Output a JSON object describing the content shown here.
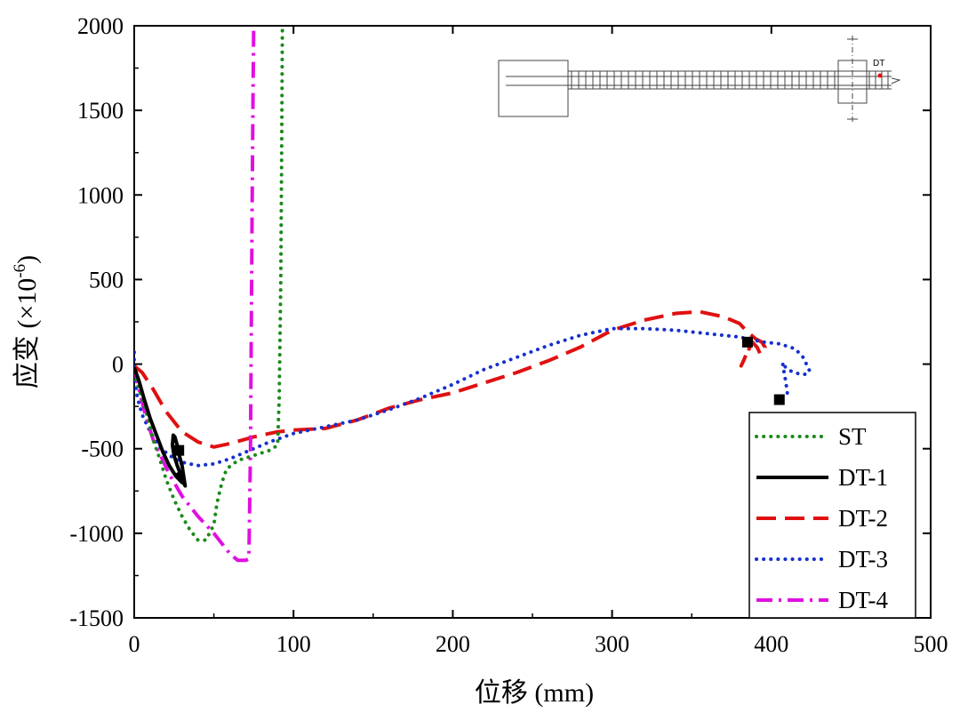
{
  "chart_data": {
    "type": "line",
    "xlabel": "位移 (mm)",
    "ylabel_main": "应变 (×10",
    "ylabel_exp": "-6",
    "ylabel_close": ")",
    "xlim": [
      0,
      500
    ],
    "ylim": [
      -1500,
      2000
    ],
    "xticks": [
      0,
      100,
      200,
      300,
      400,
      500
    ],
    "yticks": [
      -1500,
      -1000,
      -500,
      0,
      500,
      1000,
      1500,
      2000
    ],
    "xtick_labels": [
      "0",
      "100",
      "200",
      "300",
      "400",
      "500"
    ],
    "ytick_labels": [
      "-1500",
      "-1000",
      "-500",
      "0",
      "500",
      "1000",
      "1500",
      "2000"
    ],
    "grid": false,
    "legend_position": "bottom-right",
    "series": [
      {
        "name": "ST",
        "color": "#1a8a1a",
        "style": "dotted",
        "points": [
          [
            0,
            -50
          ],
          [
            3,
            -150
          ],
          [
            8,
            -300
          ],
          [
            12,
            -450
          ],
          [
            16,
            -560
          ],
          [
            20,
            -680
          ],
          [
            25,
            -800
          ],
          [
            30,
            -900
          ],
          [
            35,
            -980
          ],
          [
            40,
            -1040
          ],
          [
            45,
            -1040
          ],
          [
            50,
            -950
          ],
          [
            52,
            -820
          ],
          [
            55,
            -700
          ],
          [
            58,
            -620
          ],
          [
            65,
            -570
          ],
          [
            75,
            -540
          ],
          [
            85,
            -510
          ],
          [
            90,
            -480
          ],
          [
            91,
            -200
          ],
          [
            92,
            500
          ],
          [
            92.5,
            1200
          ],
          [
            93,
            2000
          ]
        ]
      },
      {
        "name": "DT-1",
        "color": "#000000",
        "style": "solid",
        "points": [
          [
            0,
            -20
          ],
          [
            3,
            -100
          ],
          [
            6,
            -200
          ],
          [
            10,
            -320
          ],
          [
            14,
            -420
          ],
          [
            18,
            -520
          ],
          [
            22,
            -600
          ],
          [
            26,
            -660
          ],
          [
            30,
            -700
          ],
          [
            31,
            -690
          ],
          [
            29,
            -650
          ],
          [
            27,
            -600
          ],
          [
            25,
            -540
          ],
          [
            24,
            -480
          ],
          [
            24.5,
            -420
          ],
          [
            25.5,
            -430
          ],
          [
            27,
            -480
          ],
          [
            28,
            -530
          ],
          [
            30,
            -600
          ],
          [
            32,
            -720
          ],
          [
            30,
            -680
          ],
          [
            27,
            -640
          ]
        ]
      },
      {
        "name": "DT-2",
        "color": "#e01010",
        "style": "dashed",
        "points": [
          [
            0,
            -10
          ],
          [
            5,
            -50
          ],
          [
            12,
            -150
          ],
          [
            20,
            -280
          ],
          [
            30,
            -400
          ],
          [
            40,
            -460
          ],
          [
            50,
            -490
          ],
          [
            60,
            -470
          ],
          [
            75,
            -430
          ],
          [
            90,
            -400
          ],
          [
            100,
            -390
          ],
          [
            120,
            -380
          ],
          [
            140,
            -330
          ],
          [
            160,
            -260
          ],
          [
            180,
            -210
          ],
          [
            200,
            -170
          ],
          [
            220,
            -110
          ],
          [
            240,
            -50
          ],
          [
            260,
            20
          ],
          [
            280,
            100
          ],
          [
            300,
            200
          ],
          [
            320,
            260
          ],
          [
            340,
            300
          ],
          [
            355,
            310
          ],
          [
            370,
            280
          ],
          [
            380,
            240
          ],
          [
            385,
            190
          ],
          [
            390,
            150
          ],
          [
            394,
            130
          ],
          [
            396,
            100
          ],
          [
            393,
            60
          ],
          [
            391,
            100
          ],
          [
            388,
            130
          ],
          [
            386,
            100
          ],
          [
            383,
            30
          ],
          [
            381,
            -10
          ],
          [
            384,
            50
          ],
          [
            387,
            110
          ]
        ]
      },
      {
        "name": "DT-3",
        "color": "#1530d0",
        "style": "dotted",
        "points": [
          [
            0,
            70
          ],
          [
            0,
            -80
          ],
          [
            2,
            -200
          ],
          [
            5,
            -300
          ],
          [
            10,
            -400
          ],
          [
            15,
            -480
          ],
          [
            22,
            -540
          ],
          [
            30,
            -580
          ],
          [
            40,
            -600
          ],
          [
            50,
            -590
          ],
          [
            60,
            -560
          ],
          [
            70,
            -520
          ],
          [
            85,
            -460
          ],
          [
            100,
            -410
          ],
          [
            120,
            -370
          ],
          [
            140,
            -330
          ],
          [
            160,
            -270
          ],
          [
            180,
            -200
          ],
          [
            200,
            -120
          ],
          [
            220,
            -30
          ],
          [
            240,
            40
          ],
          [
            260,
            110
          ],
          [
            280,
            170
          ],
          [
            300,
            210
          ],
          [
            320,
            210
          ],
          [
            340,
            200
          ],
          [
            360,
            180
          ],
          [
            380,
            160
          ],
          [
            395,
            130
          ],
          [
            405,
            120
          ],
          [
            415,
            90
          ],
          [
            420,
            40
          ],
          [
            424,
            -40
          ],
          [
            422,
            -60
          ],
          [
            418,
            -60
          ],
          [
            412,
            -40
          ],
          [
            409,
            -20
          ],
          [
            407,
            10
          ],
          [
            408,
            -50
          ],
          [
            409,
            -100
          ],
          [
            410,
            -170
          ],
          [
            410,
            -210
          ]
        ]
      },
      {
        "name": "DT-4",
        "color": "#e010e0",
        "style": "dashdot",
        "points": [
          [
            0,
            -20
          ],
          [
            3,
            -150
          ],
          [
            7,
            -300
          ],
          [
            12,
            -450
          ],
          [
            17,
            -550
          ],
          [
            22,
            -650
          ],
          [
            30,
            -780
          ],
          [
            40,
            -900
          ],
          [
            50,
            -1000
          ],
          [
            60,
            -1120
          ],
          [
            65,
            -1160
          ],
          [
            70,
            -1160
          ],
          [
            72,
            -1150
          ],
          [
            73,
            -500
          ],
          [
            73.5,
            200
          ],
          [
            74,
            900
          ],
          [
            74.5,
            1500
          ],
          [
            75,
            2000
          ]
        ]
      }
    ],
    "markers": [
      {
        "x": 28,
        "y": -510
      },
      {
        "x": 385,
        "y": 130
      },
      {
        "x": 405,
        "y": -210
      }
    ],
    "inset_label": "DT"
  }
}
